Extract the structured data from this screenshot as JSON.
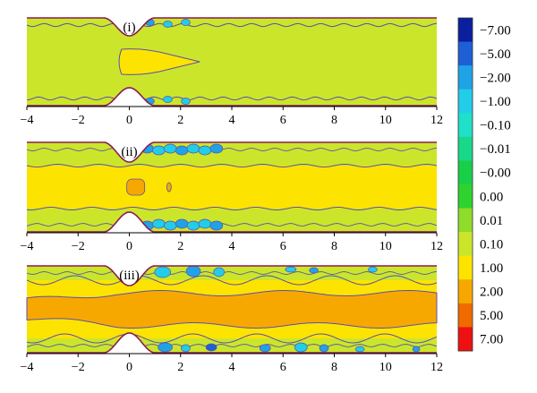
{
  "chart_data": {
    "type": "heatmap",
    "panels": [
      {
        "label": "(i)",
        "xlim": [
          -4,
          12
        ],
        "x_ticks": [
          "−4",
          "−2",
          "0",
          "2",
          "4",
          "6",
          "8",
          "10",
          "12"
        ]
      },
      {
        "label": "(ii)",
        "xlim": [
          -4,
          12
        ],
        "x_ticks": [
          "−4",
          "−2",
          "0",
          "2",
          "4",
          "6",
          "8",
          "10",
          "12"
        ]
      },
      {
        "label": "(iii)",
        "xlim": [
          -4,
          12
        ],
        "x_ticks": [
          "−4",
          "−2",
          "0",
          "2",
          "4",
          "6",
          "8",
          "10",
          "12"
        ]
      }
    ],
    "colorbar": {
      "levels": [
        {
          "label": "−7.00",
          "color": "#0a1f9e"
        },
        {
          "label": "−5.00",
          "color": "#1e5fd6"
        },
        {
          "label": "−2.00",
          "color": "#1fa3e6"
        },
        {
          "label": "−1.00",
          "color": "#22cde8"
        },
        {
          "label": "−0.10",
          "color": "#1fe0c8"
        },
        {
          "label": "−0.01",
          "color": "#19d88a"
        },
        {
          "label": "−0.00",
          "color": "#19cf4a"
        },
        {
          "label": "0.00",
          "color": "#2ed32e"
        },
        {
          "label": "0.01",
          "color": "#8fdc2a"
        },
        {
          "label": "0.10",
          "color": "#cbe62a"
        },
        {
          "label": "1.00",
          "color": "#fde300"
        },
        {
          "label": "2.00",
          "color": "#f7a800"
        },
        {
          "label": "5.00",
          "color": "#f06a00"
        },
        {
          "label": "7.00",
          "color": "#ee1111"
        }
      ]
    }
  }
}
